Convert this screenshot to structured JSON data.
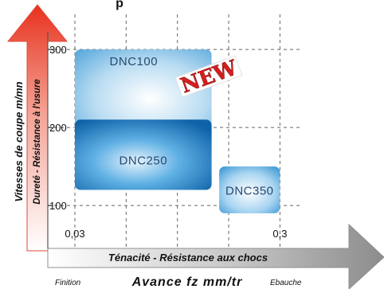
{
  "chart_data": {
    "type": "range-map",
    "title_fragment": "p",
    "x_axis": {
      "label": "Avance fz  mm/tr",
      "sublabel": "Ténacité  -  Résistance aux chocs",
      "left_note": "Finition",
      "right_note": "Ebauche",
      "tick_labels": [
        "0,03",
        "0,3"
      ],
      "tick_values": [
        0.03,
        0.3
      ],
      "range": [
        0.03,
        0.33
      ]
    },
    "y_axis": {
      "label": "Vitesses de coupe m/mn",
      "sublabel": "Dureté  -  Résistance à l'usure",
      "tick_labels": [
        "300",
        "200",
        "100"
      ],
      "tick_values": [
        300,
        200,
        100
      ],
      "range": [
        45,
        345
      ]
    },
    "grades": [
      {
        "name": "DNC100",
        "x_range": [
          0.03,
          0.21
        ],
        "y_range": [
          185,
          300
        ],
        "color": "#5aa9dc"
      },
      {
        "name": "DNC250",
        "x_range": [
          0.03,
          0.21
        ],
        "y_range": [
          120,
          210
        ],
        "color": "#1a74b9"
      },
      {
        "name": "DNC350",
        "x_range": [
          0.22,
          0.3
        ],
        "y_range": [
          90,
          150
        ],
        "color": "#2d8fd0"
      }
    ],
    "badge": {
      "text": "NEW",
      "color": "#d81e1e"
    },
    "grid": true
  }
}
